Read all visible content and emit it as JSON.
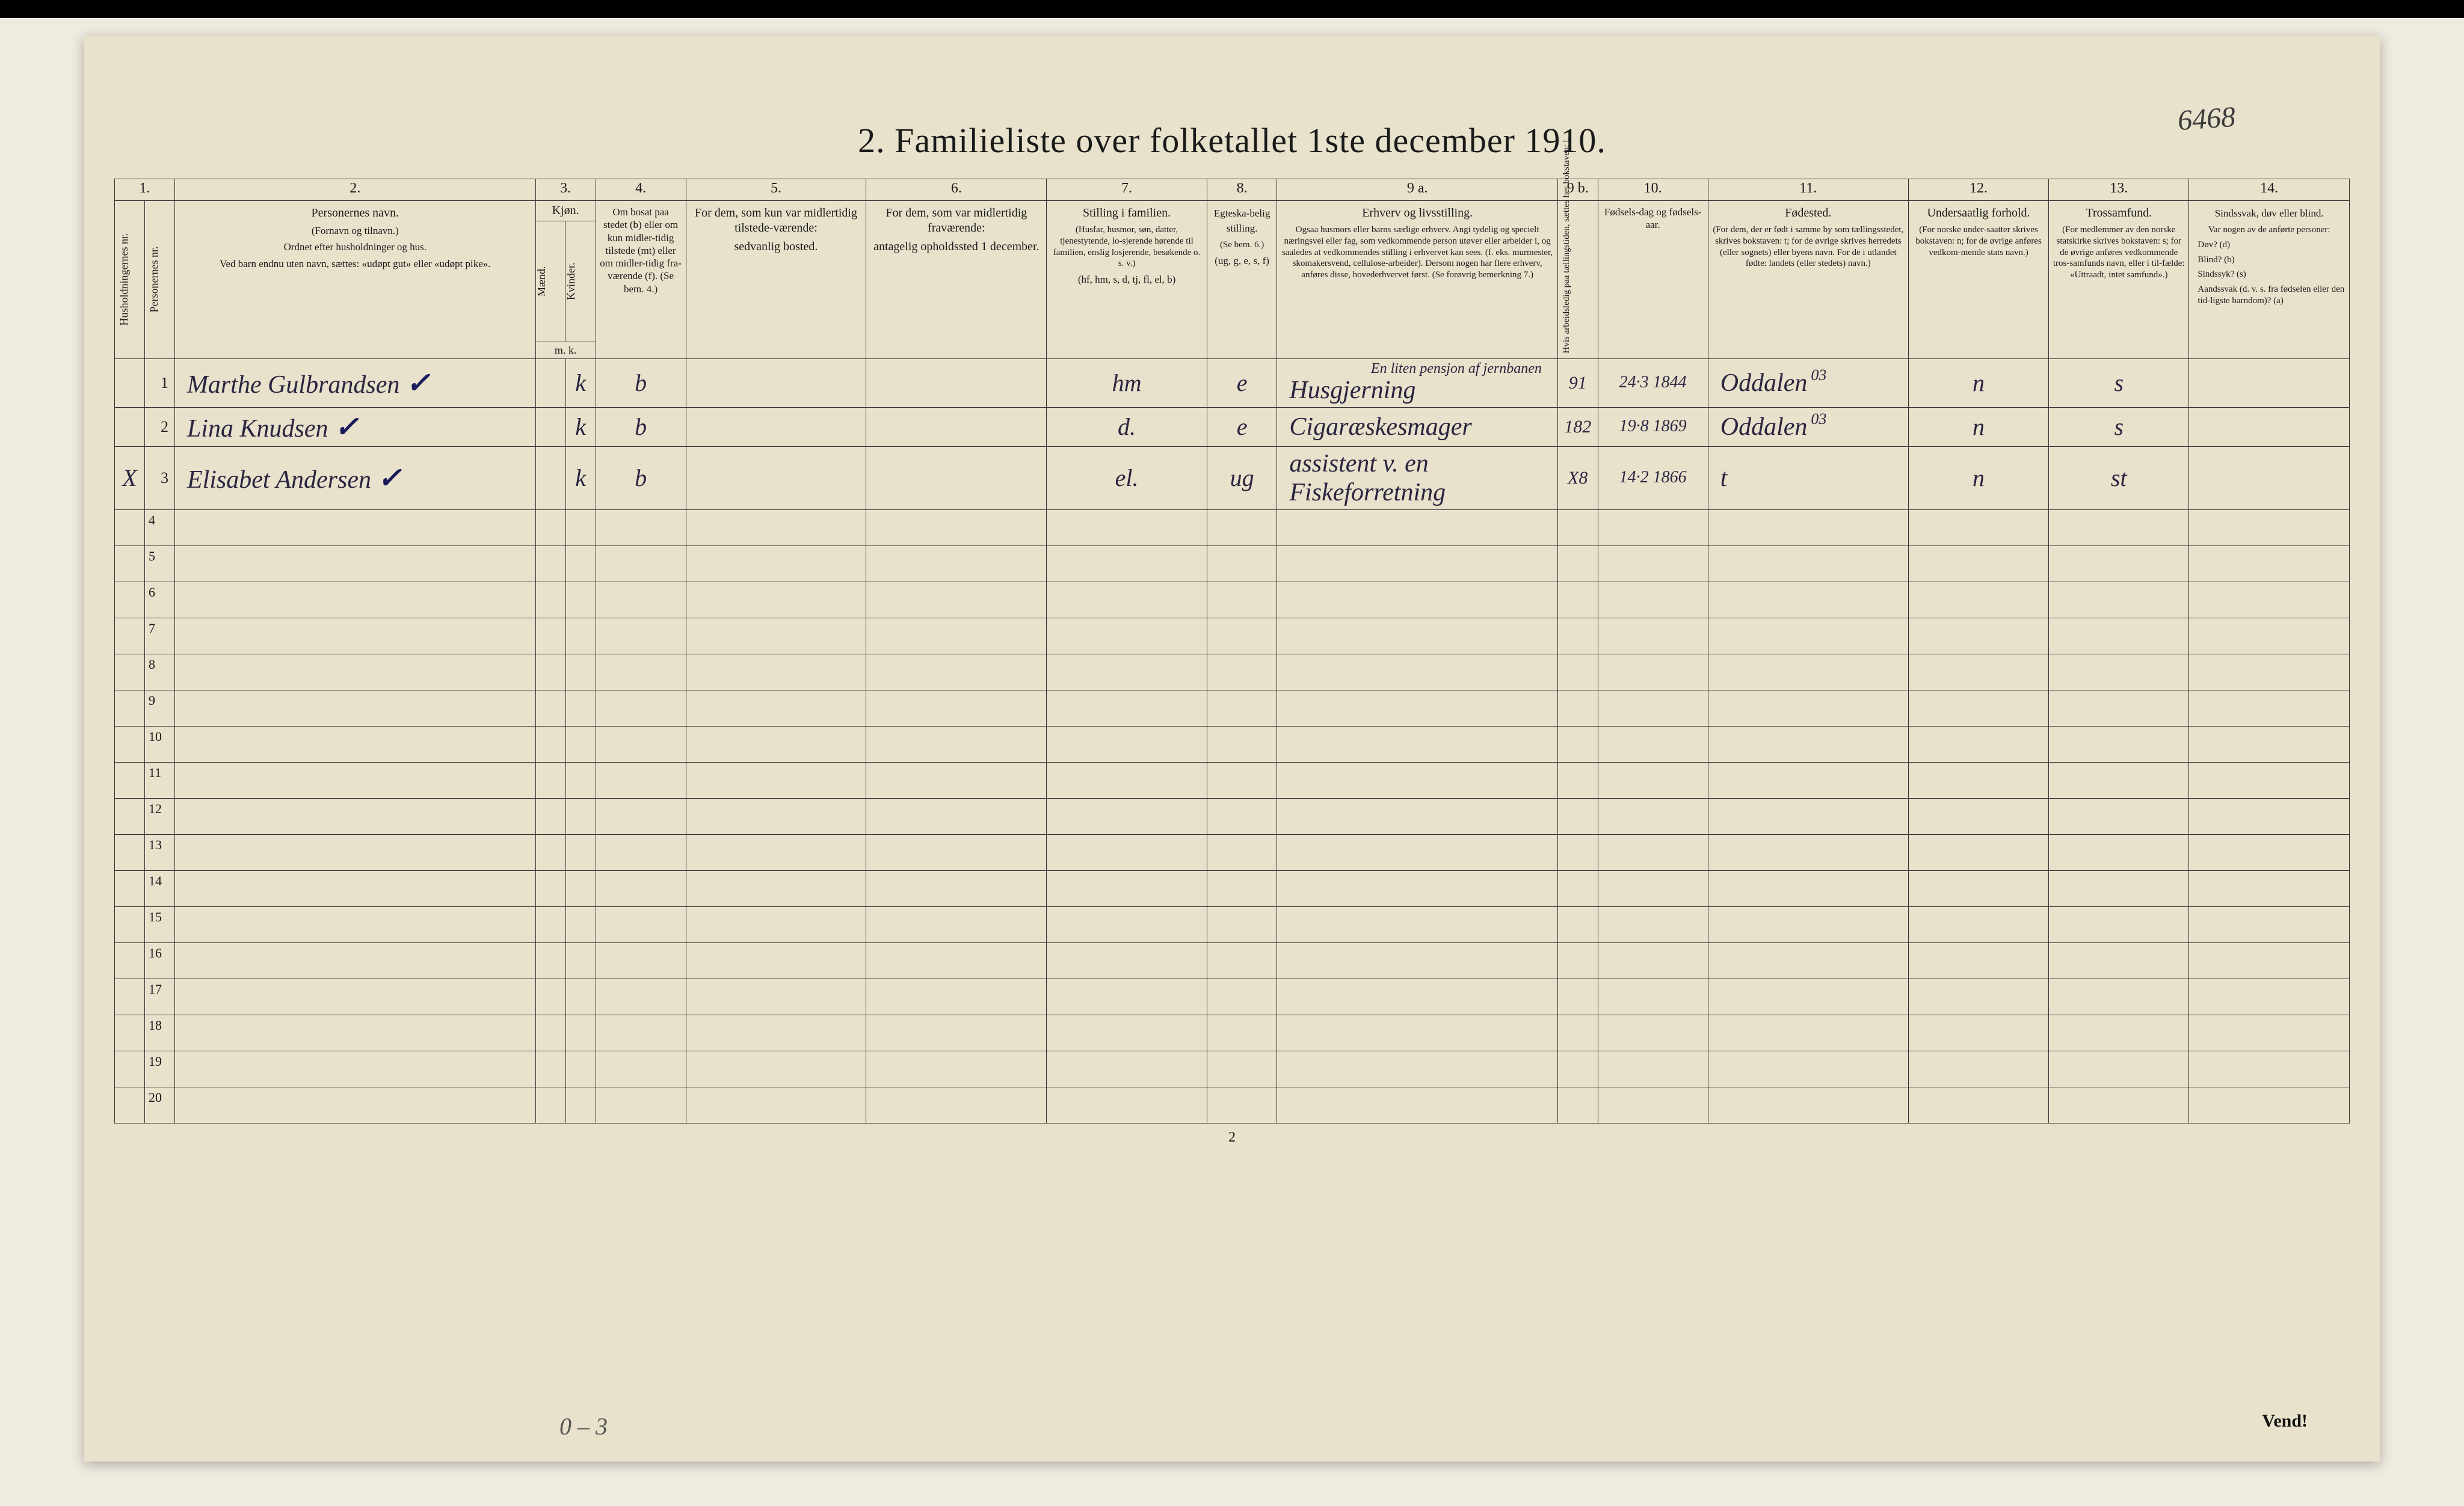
{
  "handwritten_page_ref": "6468",
  "title": "2.  Familieliste over folketallet 1ste december 1910.",
  "col_numbers": [
    "1.",
    "2.",
    "3.",
    "4.",
    "5.",
    "6.",
    "7.",
    "8.",
    "9 a.",
    "9 b.",
    "10.",
    "11.",
    "12.",
    "13.",
    "14."
  ],
  "headers": {
    "c1a": "Husholdningernes nr.",
    "c1b": "Personernes nr.",
    "c2_title": "Personernes navn.",
    "c2_sub1": "(Fornavn og tilnavn.)",
    "c2_sub2": "Ordnet efter husholdninger og hus.",
    "c2_sub3": "Ved barn endnu uten navn, sættes: «udøpt gut» eller «udøpt pike».",
    "c3_title": "Kjøn.",
    "c3_m": "Mænd.",
    "c3_k": "Kvinder.",
    "c3_foot": "m.    k.",
    "c4_title": "Om bosat paa stedet (b) eller om kun midler-tidig tilstede (mt) eller om midler-tidig fra-værende (f). (Se bem. 4.)",
    "c5_title": "For dem, som kun var midlertidig tilstede-værende:",
    "c5_sub": "sedvanlig bosted.",
    "c6_title": "For dem, som var midlertidig fraværende:",
    "c6_sub": "antagelig opholdssted 1 december.",
    "c7_title": "Stilling i familien.",
    "c7_sub1": "(Husfar, husmor, søn, datter, tjenestytende, lo-sjerende hørende til familien, enslig losjerende, besøkende o. s. v.)",
    "c7_sub2": "(hf, hm, s, d, tj, fl, el, b)",
    "c8_title": "Egteska-belig stilling.",
    "c8_sub1": "(Se bem. 6.)",
    "c8_sub2": "(ug, g, e, s, f)",
    "c9a_title": "Erhverv og livsstilling.",
    "c9a_sub": "Ogsaa husmors eller barns særlige erhverv. Angi tydelig og specielt næringsvei eller fag, som vedkommende person utøver eller arbeider i, og saaledes at vedkommendes stilling i erhvervet kan sees. (f. eks. murmester, skomakersvend, cellulose-arbeider). Dersom nogen har flere erhverv, anføres disse, hovederhvervet først. (Se forøvrig bemerkning 7.)",
    "c9b_title": "Hvis arbeidsledig paa tællingstiden, sættes her bokstaven: l.",
    "c10_title": "Fødsels-dag og fødsels-aar.",
    "c11_title": "Fødested.",
    "c11_sub": "(For dem, der er født i samme by som tællingsstedet, skrives bokstaven: t; for de øvrige skrives herredets (eller sognets) eller byens navn. For de i utlandet fødte: landets (eller stedets) navn.)",
    "c12_title": "Undersaatlig forhold.",
    "c12_sub": "(For norske under-saatter skrives bokstaven: n; for de øvrige anføres vedkom-mende stats navn.)",
    "c13_title": "Trossamfund.",
    "c13_sub": "(For medlemmer av den norske statskirke skrives bokstaven: s; for de øvrige anføres vedkommende tros-samfunds navn, eller i til-fælde: «Uttraadt, intet samfund».)",
    "c14_title": "Sindssvak, døv eller blind.",
    "c14_sub1": "Var nogen av de anførte personer:",
    "c14_sub2": "Døv?        (d)",
    "c14_sub3": "Blind?      (b)",
    "c14_sub4": "Sindssyk?  (s)",
    "c14_sub5": "Aandssvak (d. v. s. fra fødselen eller den tid-ligste barndom)?  (a)"
  },
  "rows": [
    {
      "n": "1",
      "name": "Marthe Gulbrandsen",
      "sex": "k",
      "res": "b",
      "fam": "hm",
      "mar": "e",
      "occ": "Husgjerning",
      "occ_note": "En liten pensjon af jernbanen",
      "mark9b": "91",
      "dob": "24·3 1844",
      "birth": "Oddalen",
      "o3": "03",
      "nat": "n",
      "rel": "s"
    },
    {
      "n": "2",
      "name": "Lina Knudsen",
      "sex": "k",
      "res": "b",
      "fam": "d.",
      "mar": "e",
      "occ": "Cigaræskesmager",
      "mark9b": "182",
      "dob": "19·8 1869",
      "birth": "Oddalen",
      "o3": "03",
      "nat": "n",
      "rel": "s"
    },
    {
      "n": "3",
      "pre": "X",
      "name": "Elisabet Andersen",
      "sex": "k",
      "res": "b",
      "fam": "el.",
      "mar": "ug",
      "occ": "assistent v. en Fiskeforretning",
      "mark9b": "X8",
      "dob": "14·2 1866",
      "birth": "t",
      "nat": "n",
      "rel": "st"
    }
  ],
  "empty_rows": [
    "4",
    "5",
    "6",
    "7",
    "8",
    "9",
    "10",
    "11",
    "12",
    "13",
    "14",
    "15",
    "16",
    "17",
    "18",
    "19",
    "20"
  ],
  "footer_pagenum": "2",
  "vend": "Vend!",
  "bottom_hand": "0 – 3",
  "colors": {
    "page_bg": "#e8e1cb",
    "body_bg": "#f0ebe0",
    "ink": "#1a1a1a",
    "hand_ink": "#2a2540",
    "border": "#333333"
  },
  "col_widths_pct": [
    1.5,
    1.5,
    18,
    1.5,
    1.5,
    4.5,
    9,
    9,
    8,
    3.5,
    14,
    2,
    5.5,
    10,
    7,
    7,
    8
  ]
}
